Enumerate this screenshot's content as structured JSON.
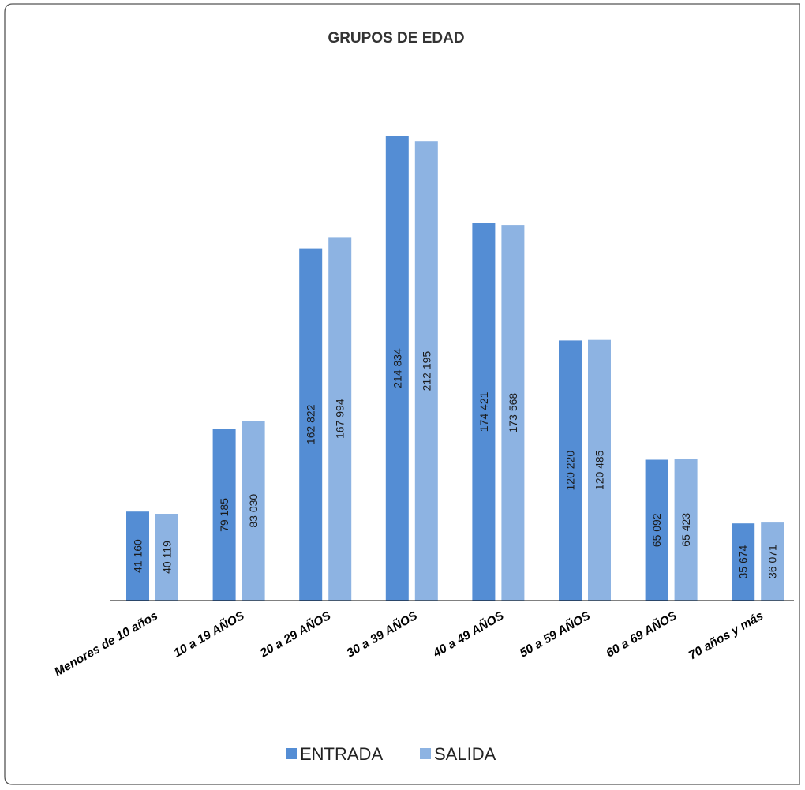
{
  "chart_data": {
    "type": "bar",
    "title": "GRUPOS DE EDAD",
    "xlabel": "",
    "ylabel": "",
    "categories": [
      "Menores de 10 años",
      "10  a  19  AÑOS",
      "20  a  29  AÑOS",
      "30  a  39  AÑOS",
      "40  a  49  AÑOS",
      "50  a  59  AÑOS",
      "60  a  69  AÑOS",
      "70  años y más"
    ],
    "series": [
      {
        "name": "ENTRADA",
        "color": "#548dd4",
        "values": [
          41160,
          79185,
          162822,
          214834,
          174421,
          120220,
          65092,
          35674
        ],
        "labels": [
          "41 160",
          "79 185",
          "162 822",
          "214 834",
          "174 421",
          "120 220",
          "65 092",
          "35 674"
        ]
      },
      {
        "name": "SALIDA",
        "color": "#8db3e2",
        "values": [
          40119,
          83030,
          167994,
          212195,
          173568,
          120485,
          65423,
          36071
        ],
        "labels": [
          "40 119",
          "83 030",
          "167 994",
          "212 195",
          "173 568",
          "120 485",
          "65 423",
          "36 071"
        ]
      }
    ],
    "ylim": [
      0,
      214834
    ],
    "grid": false,
    "legend_position": "bottom"
  }
}
